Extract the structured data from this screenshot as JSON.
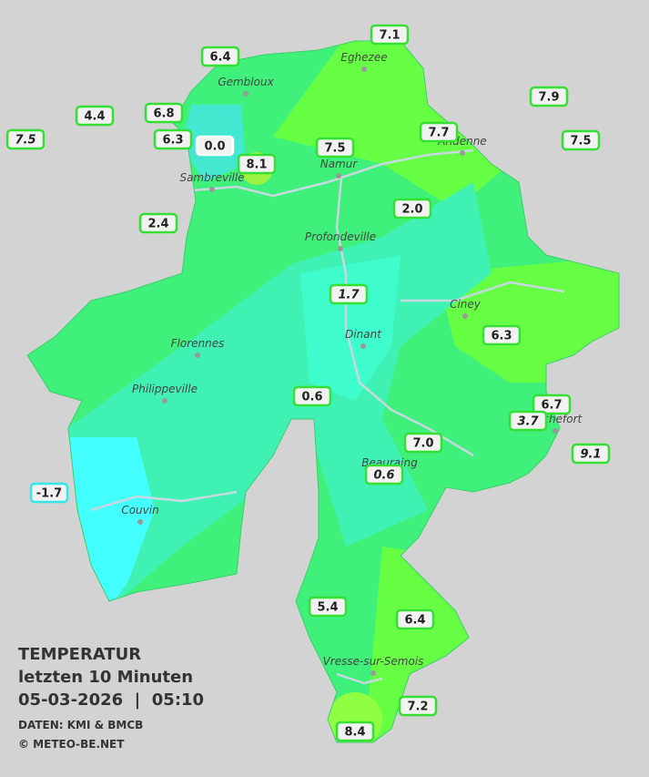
{
  "legend": {
    "title": "TEMPERATUR",
    "period": "letzten 10 Minuten",
    "datetime": "05-03-2026  |  05:10",
    "source": "DATEN: KMI & BMCB",
    "copyright": "© METEO-BE.NET"
  },
  "cities": [
    "Eghezee",
    "Gembloux",
    "Andenne",
    "Namur",
    "Sambreville",
    "Profondeville",
    "Ciney",
    "Dinant",
    "Florennes",
    "Philippeville",
    "Beauraing",
    "Rochefort",
    "Couvin",
    "Vresse-sur-Semois"
  ],
  "stations": [
    "7.1",
    "6.4",
    "7.9",
    "4.4",
    "6.8",
    "7.5",
    "6.3",
    "0.0",
    "7.7",
    "7.5",
    "7.5",
    "8.1",
    "2.4",
    "2.0",
    "1.7",
    "6.3",
    "0.6",
    "6.7",
    "3.7",
    "7.0",
    "9.1",
    "0.6",
    "-1.7",
    "5.4",
    "6.4",
    "7.2",
    "8.4"
  ]
}
